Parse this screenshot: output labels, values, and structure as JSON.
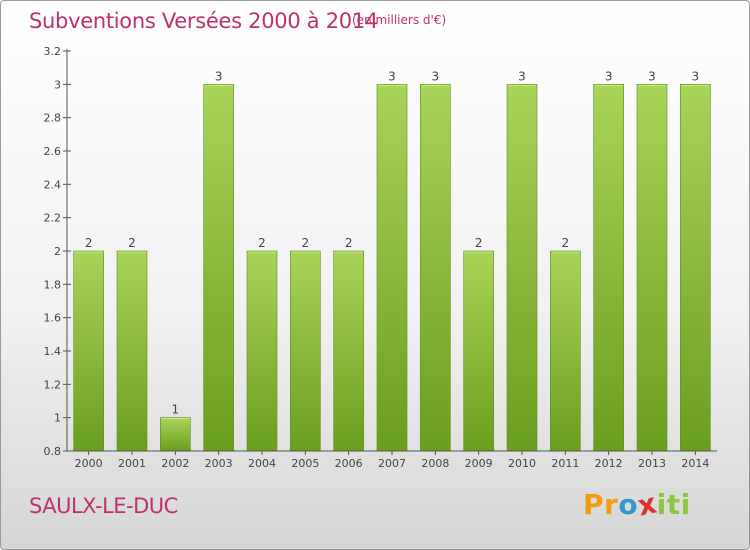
{
  "header": {
    "title": "Subventions Versées 2000 à 2014",
    "subtitle": "(en milliers d'€)"
  },
  "footer": {
    "commune": "SAULX-LE-DUC",
    "logo_text": "Proxiti",
    "logo_letters": [
      {
        "ch": "P",
        "color": "#f39c12"
      },
      {
        "ch": "r",
        "color": "#f39c12"
      },
      {
        "ch": "o",
        "color": "#3399cc"
      },
      {
        "ch": "x",
        "color": "#e03030"
      },
      {
        "ch": "i",
        "color": "#8cc63f"
      },
      {
        "ch": "t",
        "color": "#8cc63f"
      },
      {
        "ch": "i",
        "color": "#8cc63f"
      }
    ]
  },
  "chart_data": {
    "type": "bar",
    "categories": [
      "2000",
      "2001",
      "2002",
      "2003",
      "2004",
      "2005",
      "2006",
      "2007",
      "2008",
      "2009",
      "2010",
      "2011",
      "2012",
      "2013",
      "2014"
    ],
    "values": [
      2,
      2,
      1,
      3,
      2,
      2,
      2,
      3,
      3,
      2,
      3,
      2,
      3,
      3,
      3
    ],
    "value_labels": [
      "2",
      "2",
      "1",
      "3",
      "2",
      "2",
      "2",
      "3",
      "3",
      "2",
      "3",
      "2",
      "3",
      "3",
      "3"
    ],
    "y_tick_values": [
      0.8,
      1,
      1.2,
      1.4,
      1.6,
      1.8,
      2,
      2.2,
      2.4,
      2.6,
      2.8,
      3,
      3.2
    ],
    "y_tick_labels": [
      "0.8",
      "1",
      "1.2",
      "1.4",
      "1.6",
      "1.8",
      "2",
      "2.2",
      "2.4",
      "2.6",
      "2.8",
      "3",
      "3.2"
    ],
    "ylim": [
      0.8,
      3.2
    ],
    "title": "Subventions Versées 2000 à 2014",
    "subtitle": "(en milliers d'€)",
    "xlabel": "",
    "ylabel": "",
    "grid": false,
    "colors": {
      "bar_light": "#a9d45a",
      "bar_dark": "#6a9e1e",
      "title": "#c0306a",
      "axis": "#555555",
      "text": "#444444"
    }
  }
}
